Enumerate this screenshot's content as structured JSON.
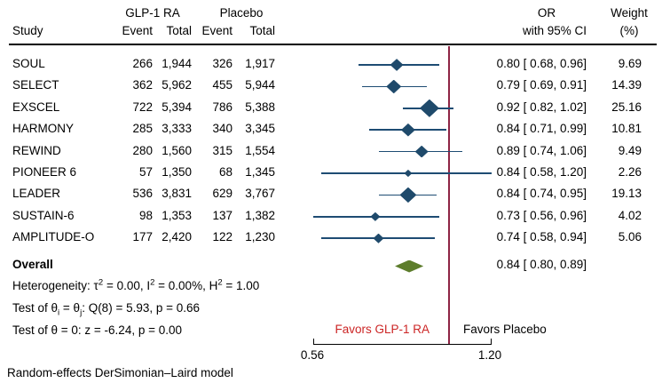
{
  "header": {
    "group_treatment": "GLP-1 RA",
    "group_control": "Placebo",
    "study_col": "Study",
    "event_col": "Event",
    "total_col": "Total",
    "or_line1": "OR",
    "or_line2": "with 95% CI",
    "weight_line1": "Weight",
    "weight_line2": "(%)"
  },
  "chart_data": {
    "type": "forest",
    "x_axis": {
      "scale": "log",
      "min": 0.56,
      "max": 1.2,
      "ticks": [
        "0.56",
        "1.20"
      ],
      "reference_line": 1.0
    },
    "studies": [
      {
        "study": "SOUL",
        "event_t": "266",
        "total_t": "1,944",
        "event_c": "326",
        "total_c": "1,917",
        "or": 0.8,
        "ci_low": 0.68,
        "ci_high": 0.96,
        "or_label": "0.80 [ 0.68,  0.96]",
        "weight": "9.69",
        "marker": 15
      },
      {
        "study": "SELECT",
        "event_t": "362",
        "total_t": "5,962",
        "event_c": "455",
        "total_c": "5,944",
        "or": 0.79,
        "ci_low": 0.69,
        "ci_high": 0.91,
        "or_label": "0.79 [ 0.69,  0.91]",
        "weight": "14.39",
        "marker": 17
      },
      {
        "study": "EXSCEL",
        "event_t": "722",
        "total_t": "5,394",
        "event_c": "786",
        "total_c": "5,388",
        "or": 0.92,
        "ci_low": 0.82,
        "ci_high": 1.02,
        "or_label": "0.92 [ 0.82,  1.02]",
        "weight": "25.16",
        "marker": 22
      },
      {
        "study": "HARMONY",
        "event_t": "285",
        "total_t": "3,333",
        "event_c": "340",
        "total_c": "3,345",
        "or": 0.84,
        "ci_low": 0.71,
        "ci_high": 0.99,
        "or_label": "0.84 [ 0.71,  0.99]",
        "weight": "10.81",
        "marker": 16
      },
      {
        "study": "REWIND",
        "event_t": "280",
        "total_t": "1,560",
        "event_c": "315",
        "total_c": "1,554",
        "or": 0.89,
        "ci_low": 0.74,
        "ci_high": 1.06,
        "or_label": "0.89 [ 0.74,  1.06]",
        "weight": "9.49",
        "marker": 15
      },
      {
        "study": "PIONEER 6",
        "event_t": "57",
        "total_t": "1,350",
        "event_c": "68",
        "total_c": "1,345",
        "or": 0.84,
        "ci_low": 0.58,
        "ci_high": 1.2,
        "or_label": "0.84 [ 0.58,  1.20]",
        "weight": "2.26",
        "marker": 9
      },
      {
        "study": "LEADER",
        "event_t": "536",
        "total_t": "3,831",
        "event_c": "629",
        "total_c": "3,767",
        "or": 0.84,
        "ci_low": 0.74,
        "ci_high": 0.95,
        "or_label": "0.84 [ 0.74,  0.95]",
        "weight": "19.13",
        "marker": 19
      },
      {
        "study": "SUSTAIN-6",
        "event_t": "98",
        "total_t": "1,353",
        "event_c": "137",
        "total_c": "1,382",
        "or": 0.73,
        "ci_low": 0.56,
        "ci_high": 0.96,
        "or_label": "0.73 [ 0.56,  0.96]",
        "weight": "4.02",
        "marker": 11
      },
      {
        "study": "AMPLITUDE-O",
        "event_t": "177",
        "total_t": "2,420",
        "event_c": "122",
        "total_c": "1,230",
        "or": 0.74,
        "ci_low": 0.58,
        "ci_high": 0.94,
        "or_label": "0.74 [ 0.58,  0.94]",
        "weight": "5.06",
        "marker": 12
      }
    ],
    "overall": {
      "label": "Overall",
      "or": 0.84,
      "ci_low": 0.8,
      "ci_high": 0.89,
      "or_label": "0.84 [ 0.80,  0.89]"
    }
  },
  "stats": {
    "heterogeneity": {
      "t1": "Heterogeneity: τ",
      "s1": "2",
      "t2": " = 0.00, I",
      "s2": "2",
      "t3": " = 0.00%, H",
      "s3": "2",
      "t4": " = 1.00"
    },
    "test_homogeneity": {
      "t1": "Test of θ",
      "s1": "i",
      "t2": " = θ",
      "s2": "j",
      "t3": ": Q(8) = 5.93, p = 0.66"
    },
    "test_effect": "Test of θ = 0: z = -6.24, p = 0.00"
  },
  "favors": {
    "left": "Favors GLP-1 RA",
    "right": "Favors Placebo"
  },
  "footer": "Random-effects DerSimonian–Laird model",
  "colors": {
    "ci_line": "#1e4c73",
    "marker": "#1f4a6b",
    "overall_diamond": "#5d7d2c",
    "reference_line": "#8e2444",
    "favors_left_text": "#cc2525",
    "text": "#000000"
  }
}
